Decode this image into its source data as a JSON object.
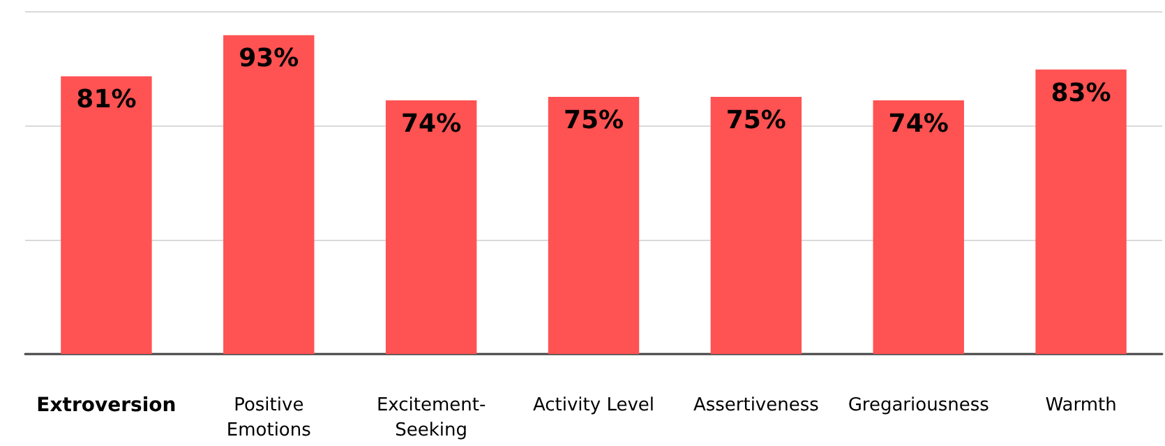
{
  "chart_data": {
    "type": "bar",
    "categories": [
      "Extroversion",
      "Positive Emotions",
      "Excitement-Seeking",
      "Activity Level",
      "Assertiveness",
      "Gregariousness",
      "Warmth"
    ],
    "values": [
      81,
      93,
      74,
      75,
      75,
      74,
      83
    ],
    "value_labels": [
      "81%",
      "93%",
      "74%",
      "75%",
      "75%",
      "74%",
      "83%"
    ],
    "color": "#ff5252",
    "ylim": [
      0,
      100
    ],
    "yticks": [
      {
        "value": 0,
        "label": null
      },
      {
        "value": 33.33,
        "label": null
      },
      {
        "value": 66.67,
        "label": null
      },
      {
        "value": 100,
        "label": null
      }
    ],
    "grid": "y",
    "tick_labels": "x"
  }
}
